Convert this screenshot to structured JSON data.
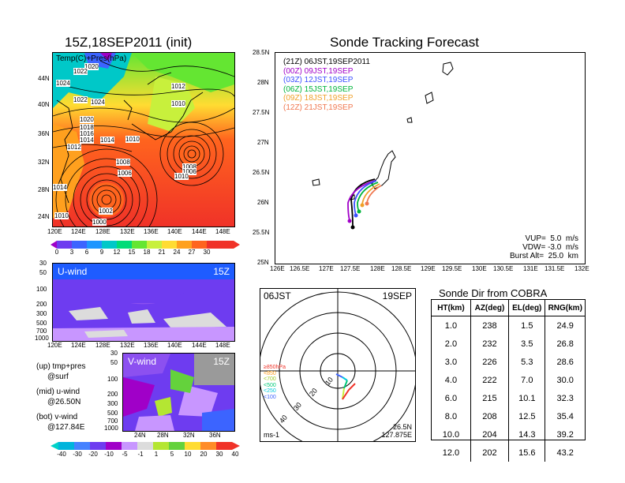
{
  "init_panel": {
    "title": "15Z,18SEP2011 (init)",
    "inner_label": "Temp(C)+Pres(hPa)",
    "lat_ticks": [
      "44N",
      "40N",
      "36N",
      "32N",
      "28N",
      "24N"
    ],
    "lon_ticks": [
      "120E",
      "124E",
      "128E",
      "132E",
      "136E",
      "140E",
      "144E",
      "148E"
    ],
    "isobar_labels": [
      "1020",
      "1022",
      "1024",
      "1022",
      "1024",
      "1020",
      "1018",
      "1016",
      "1014",
      "1012",
      "1014",
      "1010",
      "1012",
      "1010",
      "1008",
      "1006",
      "1008",
      "1006",
      "1010",
      "1014",
      "1002",
      "1010",
      "1000",
      "1014",
      "1010"
    ],
    "colorbar_labels": [
      "0",
      "3",
      "6",
      "9",
      "12",
      "15",
      "18",
      "21",
      "24",
      "27",
      "30"
    ],
    "colorbar_colors": [
      "#a000c8",
      "#6e3cf0",
      "#3c64ff",
      "#1e96ff",
      "#00c8c8",
      "#00dc78",
      "#64e632",
      "#c8f03c",
      "#ffdc32",
      "#ffa01e",
      "#ff641e",
      "#f03228"
    ]
  },
  "u_panel": {
    "label": "U-wind",
    "time": "15Z",
    "y_ticks": [
      "30",
      "50",
      "100",
      "200",
      "300",
      "500",
      "700",
      "1000"
    ],
    "x_ticks": [
      "120E",
      "124E",
      "128E",
      "132E",
      "136E",
      "140E",
      "144E",
      "148E"
    ]
  },
  "v_panel": {
    "label": "V-wind",
    "time": "15Z",
    "y_ticks": [
      "30",
      "50",
      "100",
      "200",
      "300",
      "500",
      "700",
      "1000"
    ],
    "x_ticks": [
      "24N",
      "28N",
      "32N",
      "36N"
    ]
  },
  "notes": {
    "up": "(up) tmp+pres",
    "up2": "@surf",
    "mid": "(mid) u-wind",
    "mid2": "@26.50N",
    "bot": "(bot) v-wind",
    "bot2": "@127.84E"
  },
  "wind_colorbar": {
    "labels": [
      "-40",
      "-30",
      "-20",
      "-10",
      "-5",
      "-1",
      "1",
      "5",
      "10",
      "20",
      "30",
      "40"
    ],
    "colors": [
      "#00d2c8",
      "#00b4dc",
      "#4682ff",
      "#6e3cf0",
      "#a000c8",
      "#c896ff",
      "#dcdcdc",
      "#b4e632",
      "#64d23c",
      "#ffdc32",
      "#ff8c28",
      "#f03228"
    ]
  },
  "track_panel": {
    "title": "Sonde Tracking Forecast",
    "legend": [
      {
        "text": "(21Z) 06JST,19SEP2011",
        "color": "#000000"
      },
      {
        "text": "(00Z) 09JST,19SEP",
        "color": "#a000c8"
      },
      {
        "text": "(03Z) 12JST,19SEP",
        "color": "#3c50ff"
      },
      {
        "text": "(06Z) 15JST,19SEP",
        "color": "#00b43c"
      },
      {
        "text": "(09Z) 18JST,19SEP",
        "color": "#f0a028"
      },
      {
        "text": "(12Z) 21JST,19SEP",
        "color": "#f07850"
      }
    ],
    "lat_ticks": [
      "28.5N",
      "28N",
      "27.5N",
      "27N",
      "26.5N",
      "26N",
      "25.5N",
      "25N"
    ],
    "lon_ticks": [
      "126E",
      "126.5E",
      "127E",
      "127.5E",
      "128E",
      "128.5E",
      "129E",
      "129.5E",
      "130E",
      "130.5E",
      "131E",
      "131.5E",
      "132E"
    ],
    "vup": "VUP=  5.0  m/s",
    "vdw": "VDW= -3.0  m/s",
    "burst": "Burst Alt=  25.0  km"
  },
  "hodo_panel": {
    "time": "06JST",
    "date": "19SEP",
    "lat": "26.5N",
    "lon": "127.875E",
    "unit": "ms-1",
    "ring_labels": [
      "10",
      "20",
      "30",
      "40"
    ],
    "level_legend": [
      {
        "text": "≥850hPa",
        "color": "#f03228"
      },
      {
        "text": "<850",
        "color": "#ffa01e"
      },
      {
        "text": "<700",
        "color": "#c8f03c"
      },
      {
        "text": "<500",
        "color": "#00c878"
      },
      {
        "text": "<250",
        "color": "#00c8dc"
      },
      {
        "text": "<100",
        "color": "#3c64ff"
      }
    ]
  },
  "cobra": {
    "title": "Sonde Dir from COBRA",
    "headers": [
      "HT(km)",
      "AZ(deg)",
      "EL(deg)",
      "RNG(km)"
    ],
    "rows": [
      [
        "1.0",
        "238",
        "1.5",
        "24.9"
      ],
      [
        "2.0",
        "232",
        "3.5",
        "26.8"
      ],
      [
        "3.0",
        "226",
        "5.3",
        "28.6"
      ],
      [
        "4.0",
        "222",
        "7.0",
        "30.0"
      ],
      [
        "6.0",
        "215",
        "10.1",
        "32.3"
      ],
      [
        "8.0",
        "208",
        "12.5",
        "35.4"
      ],
      [
        "10.0",
        "204",
        "14.3",
        "39.2"
      ],
      [
        "12.0",
        "202",
        "15.6",
        "43.2"
      ]
    ]
  }
}
